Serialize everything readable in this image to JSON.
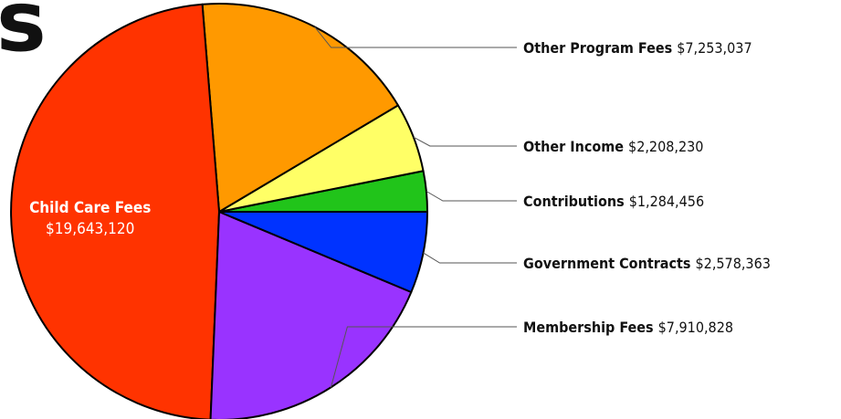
{
  "heading_fragment": "s",
  "chart_data": {
    "type": "pie",
    "title": "",
    "start_angle_deg": 0,
    "direction": "counterclockwise_from_right_axis",
    "slices": [
      {
        "name": "Contributions",
        "value_label": "$1,284,456",
        "value": 1284456,
        "color": "#21c41a",
        "label_position": "right"
      },
      {
        "name": "Other Income",
        "value_label": "$2,208,230",
        "value": 2208230,
        "color": "#ffff66",
        "label_position": "right"
      },
      {
        "name": "Other Program Fees",
        "value_label": "$7,253,037",
        "value": 7253037,
        "color": "#ff9900",
        "label_position": "right"
      },
      {
        "name": "Child Care Fees",
        "value_label": "$19,643,120",
        "value": 19643120,
        "color": "#ff3300",
        "label_position": "inside"
      },
      {
        "name": "Membership Fees",
        "value_label": "$7,910,828",
        "value": 7910828,
        "color": "#9933ff",
        "label_position": "right"
      },
      {
        "name": "Government Contracts",
        "value_label": "$2,578,363",
        "value": 2578363,
        "color": "#0033ff",
        "label_position": "right"
      }
    ]
  }
}
